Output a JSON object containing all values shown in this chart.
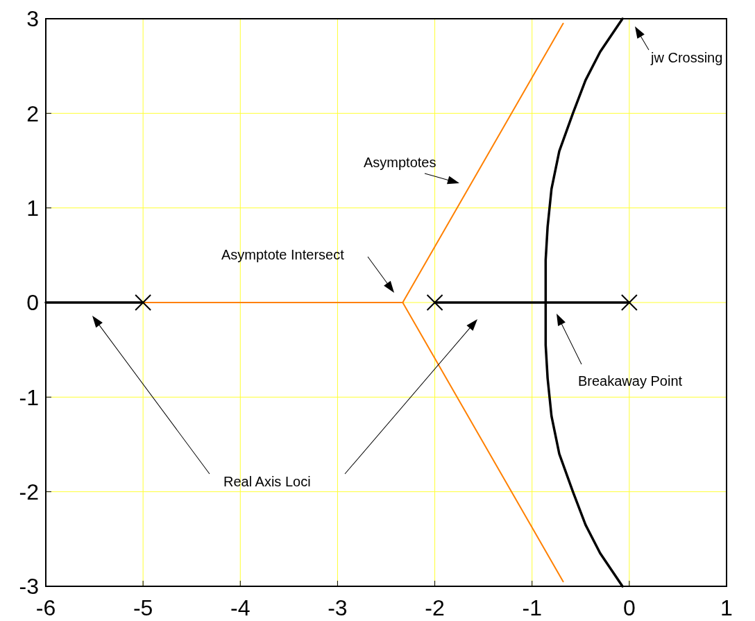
{
  "chart_data": {
    "type": "line",
    "xlim": [
      -6,
      1
    ],
    "ylim": [
      -3,
      3
    ],
    "xticks": [
      -6,
      -5,
      -4,
      -3,
      -2,
      -1,
      0,
      1
    ],
    "yticks": [
      -3,
      -2,
      -1,
      0,
      1,
      2,
      3
    ],
    "grid": true,
    "line_style": "solid",
    "series": [
      {
        "color": "#ff8000",
        "x": [
          -6,
          -2.33
        ],
        "values": [
          0,
          0
        ]
      },
      {
        "color": "#ff8000",
        "x": [
          -2.33,
          -0.68
        ],
        "values": [
          0,
          2.95
        ]
      },
      {
        "color": "#ff8000",
        "x": [
          -2.33,
          -0.68
        ],
        "values": [
          0,
          -2.95
        ]
      },
      {
        "color": "#000000",
        "x": [
          -6,
          -5
        ],
        "values": [
          0,
          0
        ]
      },
      {
        "color": "#000000",
        "marker": "cross",
        "x": [
          -2,
          0
        ],
        "values": [
          0,
          0
        ]
      },
      {
        "color": "#000000",
        "x": [
          -0.07,
          -0.3,
          -0.45,
          -0.58,
          -0.72,
          -0.8,
          -0.84,
          -0.86,
          -0.86,
          -0.86,
          -0.84,
          -0.8,
          -0.72,
          -0.58,
          -0.45,
          -0.3,
          -0.07
        ],
        "values": [
          -3,
          -2.65,
          -2.35,
          -2.0,
          -1.6,
          -1.2,
          -0.8,
          -0.45,
          0,
          0.45,
          0.8,
          1.2,
          1.6,
          2.0,
          2.35,
          2.65,
          3
        ]
      },
      {
        "type": "scatter",
        "marker": "cross",
        "color": "#000000",
        "x": [
          -5
        ],
        "values": [
          0
        ]
      }
    ],
    "annotations": [
      "jw Crossing",
      "Asymptotes",
      "Asymptote Intersect",
      "Real Axis Loci",
      "Breakaway Point"
    ]
  }
}
